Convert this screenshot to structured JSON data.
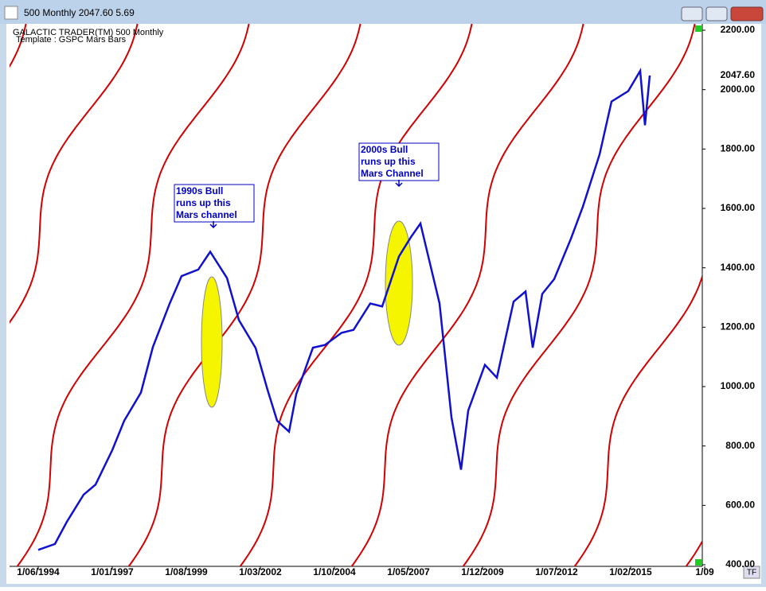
{
  "window_title": "500 Monthly 2047.60    5.69",
  "chart_data": {
    "type": "line",
    "header": [
      "GALACTIC TRADER(TM)    500 Monthly",
      "Template : GSPC Mars Bars"
    ],
    "x": [
      "1/06/1994",
      "1/01/1995",
      "1/06/1995",
      "1/01/1996",
      "1/06/1996",
      "1/01/1997",
      "1/06/1997",
      "1/01/1998",
      "1/06/1998",
      "1/01/1999",
      "1/06/1999",
      "1/01/2000",
      "1/06/2000",
      "1/01/2001",
      "1/06/2001",
      "1/01/2002",
      "1/06/2002",
      "1/10/2002",
      "1/03/2003",
      "1/06/2003",
      "1/01/2004",
      "1/06/2004",
      "1/01/2005",
      "1/06/2005",
      "1/01/2006",
      "1/06/2006",
      "1/01/2007",
      "1/06/2007",
      "1/10/2007",
      "1/06/2008",
      "1/11/2008",
      "1/03/2009",
      "1/06/2009",
      "1/01/2010",
      "1/06/2010",
      "1/01/2011",
      "1/06/2011",
      "1/09/2011",
      "1/01/2012",
      "1/06/2012",
      "1/01/2013",
      "1/06/2013",
      "1/01/2014",
      "1/06/2014",
      "1/01/2015",
      "1/06/2015",
      "1/08/2015",
      "1/10/2015"
    ],
    "series": [
      {
        "name": "500 Monthly",
        "color": "#1010d0",
        "values": [
          450,
          470,
          545,
          636,
          670,
          786,
          885,
          980,
          1133,
          1279,
          1372,
          1394,
          1454,
          1366,
          1224,
          1130,
          989,
          885,
          848,
          974,
          1131,
          1140,
          1181,
          1191,
          1280,
          1270,
          1438,
          1503,
          1549,
          1280,
          896,
          720,
          919,
          1073,
          1030,
          1286,
          1320,
          1131,
          1312,
          1362,
          1498,
          1606,
          1782,
          1960,
          1995,
          2063,
          1880,
          2047.6
        ]
      }
    ],
    "last_value": {
      "value": 2047.6,
      "label": "2047.60"
    },
    "xlim": [
      "1/06/1993",
      "1/08/2017"
    ],
    "xticks": [
      "1/06/1994",
      "1/01/1997",
      "1/08/1999",
      "1/03/2002",
      "1/10/2004",
      "1/05/2007",
      "1/12/2009",
      "1/07/2012",
      "1/02/2015",
      {
        "value": "1/09/2017",
        "label": "1/09"
      }
    ],
    "ylim": [
      400,
      2200
    ],
    "yticks": [
      {
        "value": 400,
        "label": "400.00"
      },
      {
        "value": 600,
        "label": "600.00"
      },
      {
        "value": 800,
        "label": "800.00"
      },
      {
        "value": 1000,
        "label": "1000.00"
      },
      {
        "value": 1200,
        "label": "1200.00"
      },
      {
        "value": 1400,
        "label": "1400.00"
      },
      {
        "value": 1600,
        "label": "1600.00"
      },
      {
        "value": 1800,
        "label": "1800.00"
      },
      {
        "value": 2000,
        "label": "2000.00"
      },
      {
        "value": 2200,
        "label": "2200.00"
      }
    ],
    "annotations": [
      {
        "lines": [
          "1990s Bull",
          "runs up this",
          "Mars channel"
        ]
      },
      {
        "lines": [
          "2000s Bull",
          "runs up this",
          "Mars Channel"
        ]
      }
    ],
    "button": "TF"
  }
}
